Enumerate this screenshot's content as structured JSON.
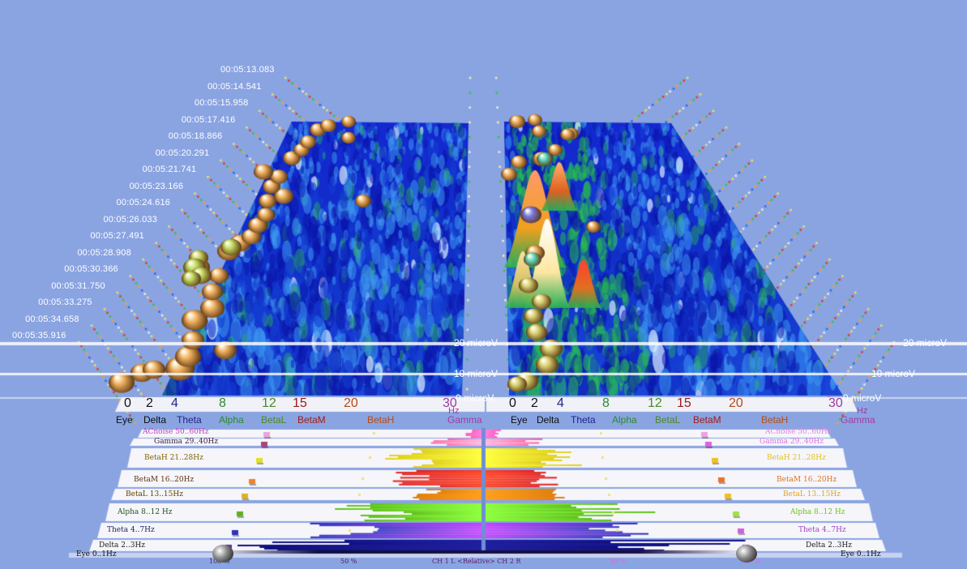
{
  "colors": {
    "background": "#8aa4e2",
    "surface_low": "#0a1fc4",
    "surface_mid": "#2a7be6",
    "surface_peak_green": "#23c23a",
    "peak_hot": "#ff4a1a",
    "marker_gold": "#f0b060",
    "marker_green": "#b8d860",
    "marker_cyan": "#60e0c0",
    "marker_violet": "#6a6ae0"
  },
  "time_labels": [
    "00:05:13.083",
    "00:05:14.541",
    "00:05:15.958",
    "00:05:17.416",
    "00:05:18.866",
    "00:05:20.291",
    "00:05:21.741",
    "00:05:23.166",
    "00:05:24.616",
    "00:05:26.033",
    "00:05:27.491",
    "00:05:28.908",
    "00:05:30.366",
    "00:05:31.750",
    "00:05:33.275",
    "00:05:34.658",
    "00:05:35.916"
  ],
  "amplitude_labels": {
    "a20": "20 microV",
    "a10": "10 microV",
    "a0": "0 microV"
  },
  "freq_axis": {
    "numbers": [
      "0",
      "2",
      "4",
      "8",
      "12",
      "15",
      "20",
      "30"
    ],
    "unit": "Hz",
    "band_names": [
      "Eye",
      "Delta",
      "Theta",
      "Alpha",
      "BetaL",
      "BetaM",
      "BetaH",
      "Gamma"
    ]
  },
  "band_rows_left": [
    "ACnoise 50..60Hz",
    "Gamma 29..40Hz",
    "BetaH 21..28Hz",
    "BetaM 16..20Hz",
    "BetaL 13..15Hz",
    "Alpha 8..12 Hz",
    "Theta 4..7Hz",
    "Delta 2..3Hz",
    "Eye 0..1Hz"
  ],
  "band_rows_right": [
    "ACnoise 50..60Hz",
    "Gamma 29..40Hz",
    "BetaH 21..28Hz",
    "BetaM 16..20Hz",
    "BetaL 13..15Hz",
    "Alpha 8..12 Hz",
    "Theta 4..7Hz",
    "Delta 2..3Hz",
    "Eye 0..1Hz"
  ],
  "bottom_bar": {
    "left_percent": "100 %",
    "mid_percent": "50 %",
    "channel_label": "CH 1 L <Relative> CH 2 R",
    "right_mid_percent": "50 %",
    "right_percent": "100 %"
  },
  "icons": [
    "left-slider-knob-icon",
    "right-slider-knob-icon"
  ]
}
